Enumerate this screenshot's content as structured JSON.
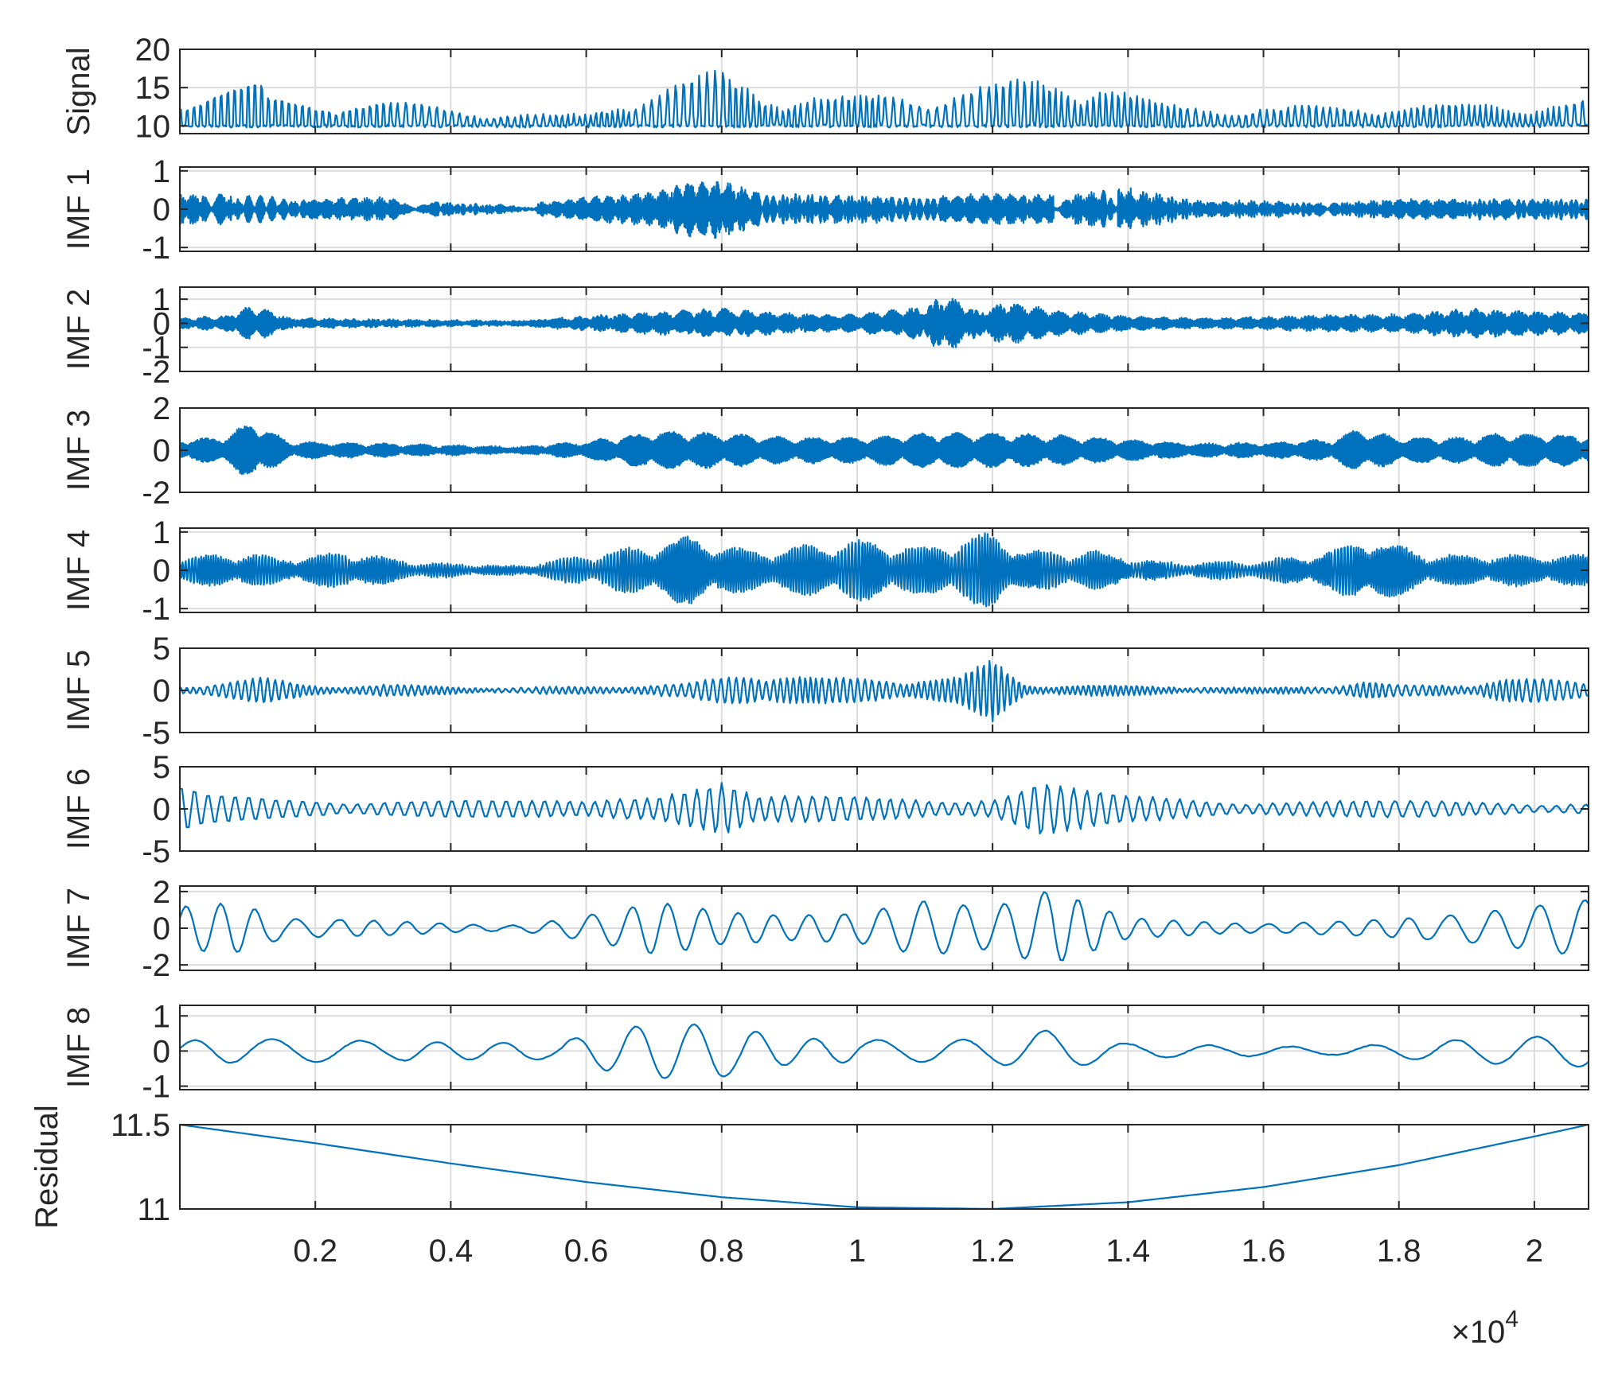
{
  "chart_data": {
    "type": "line",
    "layout": "stacked-subplots",
    "x_axis": {
      "range": [
        0,
        20800
      ],
      "tick_values": [
        2000,
        4000,
        6000,
        8000,
        10000,
        12000,
        14000,
        16000,
        18000,
        20000
      ],
      "tick_labels": [
        "0.2",
        "0.4",
        "0.6",
        "0.8",
        "1",
        "1.2",
        "1.4",
        "1.6",
        "1.8",
        "2"
      ],
      "exponent_label": "×10",
      "exponent_power": "4"
    },
    "grid": true,
    "line_color": "#0072BD",
    "panels": [
      {
        "ylabel": "Signal",
        "ylim": [
          9,
          20
        ],
        "yticks": [
          10,
          15,
          20
        ],
        "ytick_labels": [
          "10",
          "15",
          "20"
        ],
        "kind": "bursts",
        "baseline": 10,
        "seed": 3,
        "carrier_period": 100,
        "env_x": [
          0,
          600,
          1200,
          1300,
          2000,
          3000,
          4000,
          5200,
          6000,
          6800,
          7600,
          8000,
          8600,
          9800,
          10800,
          11400,
          12000,
          12800,
          13600,
          13900,
          14500,
          16000,
          18000,
          19500,
          20800
        ],
        "env_y": [
          4.5,
          5.5,
          6,
          4,
          3.5,
          3.5,
          2.5,
          1.5,
          1.5,
          5,
          6.5,
          7.5,
          5,
          4,
          4.5,
          5,
          5.5,
          7,
          6.5,
          5,
          3,
          2.5,
          3,
          3,
          3.5
        ]
      },
      {
        "ylabel": "IMF 1",
        "ylim": [
          -1.1,
          1.1
        ],
        "yticks": [
          -1,
          0,
          1
        ],
        "ytick_labels": [
          "-1",
          "0",
          "1"
        ],
        "kind": "bursts",
        "baseline": 0,
        "seed": 11,
        "carrier_period": 9,
        "noise": 0.03,
        "env_x": [
          0,
          1000,
          2000,
          3000,
          4000,
          5000,
          6000,
          7000,
          7500,
          8000,
          8600,
          10000,
          11000,
          12000,
          13000,
          14000,
          15000,
          16000,
          17000,
          18000,
          19000,
          20800
        ],
        "env_y": [
          0.4,
          0.35,
          0.25,
          0.3,
          0.15,
          0.08,
          0.3,
          0.45,
          0.7,
          0.75,
          0.4,
          0.35,
          0.3,
          0.4,
          0.35,
          0.55,
          0.2,
          0.2,
          0.15,
          0.25,
          0.25,
          0.25
        ]
      },
      {
        "ylabel": "IMF 2",
        "ylim": [
          -2,
          1.5
        ],
        "yticks": [
          -2,
          -1,
          0,
          1
        ],
        "ytick_labels": [
          "-2",
          "-1",
          "0",
          "1"
        ],
        "kind": "bursts",
        "baseline": 0,
        "seed": 23,
        "carrier_period": 14,
        "noise": 0.04,
        "env_x": [
          0,
          700,
          1100,
          1600,
          3000,
          5000,
          6000,
          7000,
          8000,
          9000,
          10000,
          11000,
          11300,
          11800,
          12200,
          13000,
          14000,
          15000,
          16000,
          17000,
          18000,
          19000,
          20800
        ],
        "env_y": [
          0.2,
          0.3,
          0.8,
          0.2,
          0.15,
          0.08,
          0.3,
          0.45,
          0.6,
          0.4,
          0.35,
          0.7,
          1.2,
          0.5,
          0.9,
          0.5,
          0.3,
          0.2,
          0.25,
          0.35,
          0.35,
          0.6,
          0.4
        ]
      },
      {
        "ylabel": "IMF 3",
        "ylim": [
          -2,
          2
        ],
        "yticks": [
          -2,
          0,
          2
        ],
        "ytick_labels": [
          "-2",
          "0",
          "2"
        ],
        "kind": "bursts",
        "baseline": 0,
        "seed": 37,
        "carrier_period": 24,
        "noise": 0.04,
        "env_x": [
          0,
          600,
          1100,
          1600,
          3000,
          5000,
          6000,
          7000,
          8000,
          9000,
          10000,
          11000,
          12000,
          13000,
          14000,
          15000,
          16000,
          17000,
          17400,
          18000,
          19000,
          19500,
          20800
        ],
        "env_y": [
          0.5,
          0.6,
          1.4,
          0.4,
          0.3,
          0.15,
          0.4,
          0.9,
          0.8,
          0.6,
          0.6,
          0.8,
          0.8,
          0.7,
          0.5,
          0.3,
          0.35,
          0.5,
          1.0,
          0.6,
          0.6,
          0.8,
          0.7
        ]
      },
      {
        "ylabel": "IMF 4",
        "ylim": [
          -1.1,
          1.1
        ],
        "yticks": [
          -1,
          0,
          1
        ],
        "ytick_labels": [
          "-1",
          "0",
          "1"
        ],
        "kind": "bursts",
        "baseline": 0,
        "seed": 41,
        "carrier_period": 40,
        "noise": 0.03,
        "env_x": [
          0,
          1000,
          1500,
          2500,
          3500,
          5000,
          6000,
          7000,
          7500,
          8500,
          10000,
          11000,
          12000,
          12500,
          13500,
          14500,
          16000,
          17000,
          17500,
          18500,
          20000,
          20800
        ],
        "env_y": [
          0.35,
          0.45,
          0.3,
          0.5,
          0.2,
          0.1,
          0.4,
          0.7,
          0.9,
          0.5,
          0.8,
          0.6,
          1.0,
          0.5,
          0.5,
          0.2,
          0.25,
          0.5,
          0.9,
          0.4,
          0.4,
          0.4
        ]
      },
      {
        "ylabel": "IMF 5",
        "ylim": [
          -5,
          5
        ],
        "yticks": [
          -5,
          0,
          5
        ],
        "ytick_labels": [
          "-5",
          "0",
          "5"
        ],
        "kind": "bursts",
        "baseline": 0,
        "seed": 53,
        "carrier_period": 95,
        "noise": 0.08,
        "env_x": [
          0,
          500,
          1200,
          2000,
          3000,
          5000,
          6000,
          7500,
          8500,
          9500,
          10500,
          11500,
          12000,
          12500,
          14000,
          16000,
          17000,
          17500,
          18000,
          19000,
          19500,
          20800
        ],
        "env_y": [
          0.5,
          1,
          1.5,
          0.6,
          0.7,
          0.3,
          0.5,
          0.8,
          2.5,
          1.5,
          1.5,
          1.6,
          3.8,
          0.8,
          0.6,
          0.3,
          0.6,
          1.2,
          0.6,
          0.8,
          1.6,
          1
        ]
      },
      {
        "ylabel": "IMF 6",
        "ylim": [
          -5,
          5
        ],
        "yticks": [
          -5,
          0,
          5
        ],
        "ytick_labels": [
          "-5",
          "0",
          "5"
        ],
        "kind": "bursts",
        "baseline": 0,
        "seed": 61,
        "carrier_period": 200,
        "noise": 0.06,
        "env_x": [
          0,
          400,
          1500,
          3000,
          5000,
          6000,
          7000,
          7500,
          8000,
          8500,
          10000,
          11000,
          12000,
          12700,
          13200,
          14000,
          16000,
          18000,
          20800
        ],
        "env_y": [
          2.8,
          1.8,
          1.3,
          1.2,
          1.0,
          1.0,
          2.8,
          3.2,
          3.8,
          1.5,
          1.6,
          1.6,
          1.4,
          3.5,
          2.5,
          1.6,
          1.1,
          1.0,
          0.8
        ]
      },
      {
        "ylabel": "IMF 7",
        "ylim": [
          -2.3,
          2.3
        ],
        "yticks": [
          -2,
          0,
          2
        ],
        "ytick_labels": [
          "-2",
          "0",
          "2"
        ],
        "kind": "bursts",
        "baseline": 0,
        "seed": 71,
        "carrier_period": 520,
        "noise": 0.02,
        "env_x": [
          0,
          800,
          1600,
          3000,
          5000,
          6500,
          7000,
          8000,
          9000,
          10000,
          11000,
          12000,
          12800,
          13200,
          14000,
          15000,
          16000,
          18000,
          19000,
          20000,
          20800
        ],
        "env_y": [
          1.2,
          1.5,
          0.6,
          0.6,
          0.3,
          1.4,
          1.8,
          1.0,
          0.7,
          0.8,
          1.5,
          1.2,
          2.3,
          2.0,
          0.8,
          0.6,
          0.5,
          0.7,
          0.9,
          1.3,
          1.6
        ]
      },
      {
        "ylabel": "IMF 8",
        "ylim": [
          -1.1,
          1.3
        ],
        "yticks": [
          -1,
          0,
          1
        ],
        "ytick_labels": [
          "-1",
          "0",
          "1"
        ],
        "kind": "bursts",
        "baseline": 0,
        "seed": 83,
        "carrier_period": 1050,
        "noise": 0.01,
        "env_x": [
          0,
          1000,
          2500,
          4000,
          5500,
          6500,
          7000,
          8000,
          9000,
          10000,
          11000,
          12000,
          12800,
          13200,
          14000,
          15500,
          17000,
          19000,
          20800
        ],
        "env_y": [
          0.3,
          0.35,
          0.3,
          0.25,
          0.25,
          0.7,
          0.9,
          0.9,
          0.5,
          0.45,
          0.5,
          0.6,
          1.2,
          1.0,
          0.4,
          0.25,
          0.15,
          0.4,
          0.5
        ]
      },
      {
        "ylabel": "Residual",
        "ylim": [
          11,
          11.5
        ],
        "yticks": [
          11,
          11.5
        ],
        "ytick_labels": [
          "11",
          "11.5"
        ],
        "kind": "curve",
        "x": [
          0,
          2000,
          4000,
          6000,
          8000,
          10000,
          12000,
          14000,
          16000,
          18000,
          20000,
          20800
        ],
        "y": [
          11.5,
          11.39,
          11.27,
          11.16,
          11.07,
          11.01,
          11.0,
          11.04,
          11.13,
          11.26,
          11.43,
          11.5
        ]
      }
    ]
  }
}
